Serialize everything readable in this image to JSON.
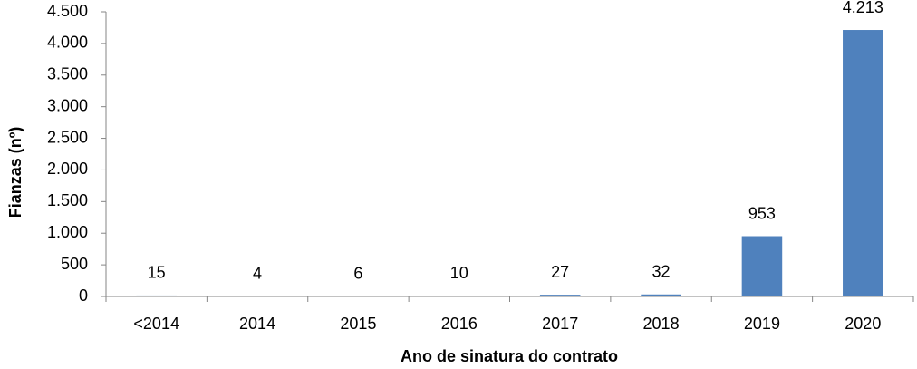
{
  "chart_data": {
    "type": "bar",
    "y_label": "Fianzas (nº)",
    "x_label": "Ano de sinatura do contrato",
    "categories": [
      "<2014",
      "2014",
      "2015",
      "2016",
      "2017",
      "2018",
      "2019",
      "2020"
    ],
    "values": [
      15,
      4,
      6,
      10,
      27,
      32,
      953,
      4213
    ],
    "value_labels": [
      "15",
      "4",
      "6",
      "10",
      "27",
      "32",
      "953",
      "4.213"
    ],
    "color": "#4f81bd",
    "ylim": [
      0,
      4500
    ],
    "yticks": [
      0,
      500,
      {
        "value": 1000,
        "label": "1.000"
      },
      {
        "value": 1500,
        "label": "1.500"
      },
      {
        "value": 2000,
        "label": "2.000"
      },
      {
        "value": 2500,
        "label": "2.500"
      },
      {
        "value": 3000,
        "label": "3.000"
      },
      {
        "value": 3500,
        "label": "3.500"
      },
      {
        "value": 4000,
        "label": "4.000"
      },
      {
        "value": 4500,
        "label": "4.500"
      }
    ],
    "grid": false
  }
}
